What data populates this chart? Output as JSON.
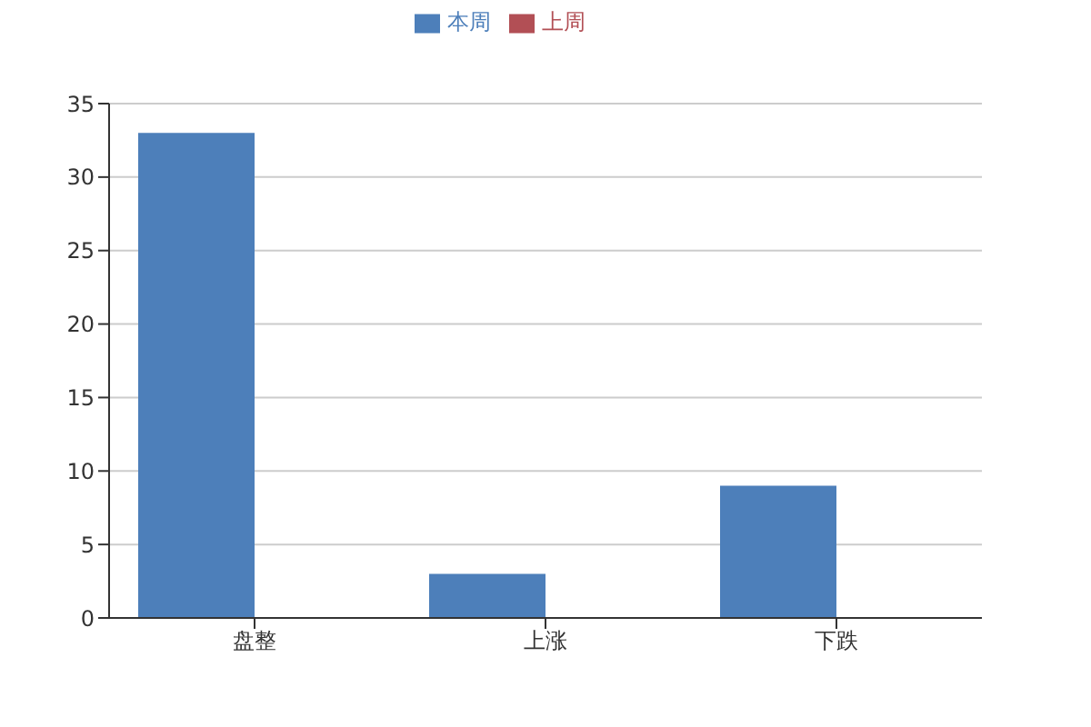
{
  "chart_data": {
    "type": "bar",
    "categories": [
      "盘整",
      "上涨",
      "下跌"
    ],
    "series": [
      {
        "name": "本周",
        "color": "#4d7fba",
        "values": [
          33,
          3,
          9
        ]
      },
      {
        "name": "上周",
        "color": "#b24f55",
        "values": [
          null,
          null,
          null
        ]
      }
    ],
    "ylim": [
      0,
      35
    ],
    "yticks": [
      0,
      5,
      10,
      15,
      20,
      25,
      30,
      35
    ],
    "grid": "y",
    "legend": "top"
  }
}
